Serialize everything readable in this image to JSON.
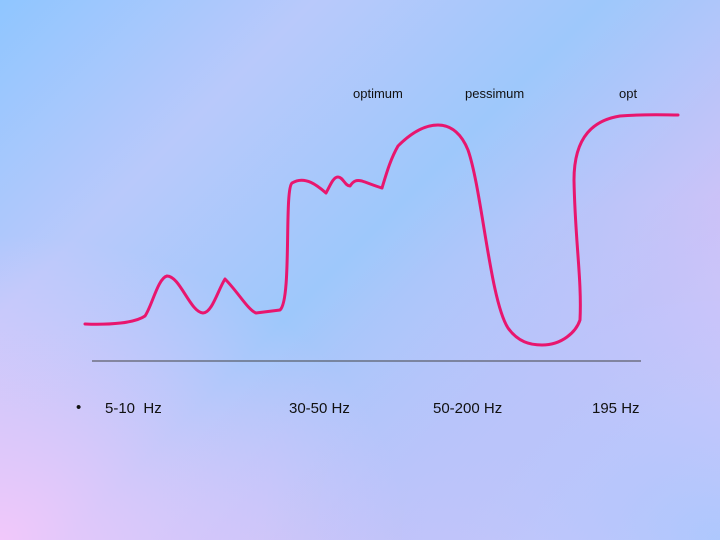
{
  "labels": {
    "optimum": "optimum",
    "pessimum": "pessimum",
    "opt": "opt"
  },
  "bullet": "•",
  "frequencies": [
    "5-10  Hz",
    "30-50 Hz",
    "50-200 Hz",
    "195 Hz"
  ],
  "colors": {
    "curve": "#e8166e",
    "baseline": "#444444",
    "text": "#111111"
  }
}
